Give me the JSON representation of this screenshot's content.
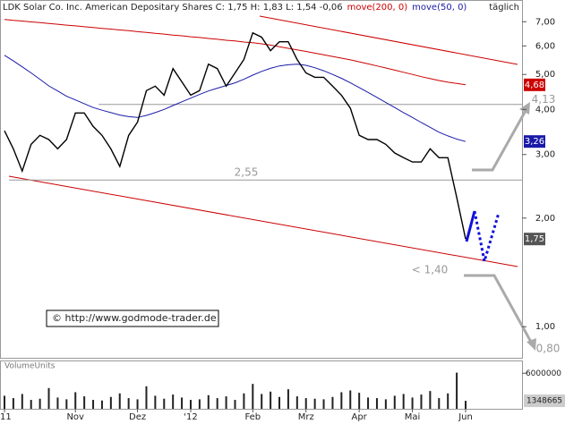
{
  "chart_data": {
    "type": "line",
    "title": "LDK Solar Co. Inc. American Depositary Shares C: 1,75 H: 1,83 L: 1,54 -0,06",
    "period": "täglich",
    "watermark": "© http://www.godmode-trader.de",
    "log_scale": true,
    "ylim": [
      0.82,
      7.95
    ],
    "yticks": [
      {
        "value": 1,
        "label": "1,00"
      },
      {
        "value": 2,
        "label": "2,00"
      },
      {
        "value": 3,
        "label": "3,00"
      },
      {
        "value": 4,
        "label": "4,00"
      },
      {
        "value": 5,
        "label": "5,00"
      },
      {
        "value": 6,
        "label": "6,00"
      },
      {
        "value": 7,
        "label": "7,00"
      }
    ],
    "categories": [
      "'11",
      null,
      null,
      null,
      null,
      null,
      null,
      null,
      "Nov",
      null,
      null,
      null,
      null,
      null,
      null,
      "Dez",
      null,
      null,
      null,
      null,
      null,
      "'12",
      null,
      null,
      null,
      null,
      null,
      null,
      "Feb",
      null,
      null,
      null,
      null,
      null,
      "Mrz",
      null,
      null,
      null,
      null,
      null,
      "Apr",
      null,
      null,
      null,
      null,
      null,
      "Mai",
      null,
      null,
      null,
      null,
      null,
      "Jun"
    ],
    "price": {
      "color": "#000000",
      "last_label": "1,75",
      "values": [
        3.49,
        3.11,
        2.7,
        3.2,
        3.39,
        3.3,
        3.11,
        3.3,
        3.91,
        3.91,
        3.59,
        3.39,
        3.11,
        2.78,
        3.39,
        3.69,
        4.51,
        4.64,
        4.38,
        5.19,
        4.77,
        4.38,
        4.51,
        5.34,
        5.19,
        4.64,
        5.05,
        5.5,
        6.52,
        6.34,
        5.82,
        6.16,
        6.16,
        5.5,
        5.05,
        4.91,
        4.91,
        4.64,
        4.38,
        4.03,
        3.39,
        3.3,
        3.3,
        3.2,
        3.03,
        2.94,
        2.86,
        2.86,
        3.11,
        2.94,
        2.94,
        2.28,
        1.75
      ]
    },
    "series": [
      {
        "name": "move(200, 0)",
        "color": "#cc0000",
        "last_label": "4,68",
        "values": [
          7.1,
          7.06,
          7.03,
          6.99,
          6.96,
          6.92,
          6.89,
          6.85,
          6.82,
          6.78,
          6.75,
          6.71,
          6.68,
          6.64,
          6.61,
          6.57,
          6.54,
          6.5,
          6.47,
          6.43,
          6.4,
          6.36,
          6.33,
          6.29,
          6.26,
          6.22,
          6.19,
          6.15,
          6.12,
          6.08,
          6.03,
          5.97,
          5.91,
          5.85,
          5.79,
          5.73,
          5.67,
          5.61,
          5.55,
          5.49,
          5.42,
          5.35,
          5.28,
          5.21,
          5.14,
          5.07,
          5.0,
          4.93,
          4.87,
          4.81,
          4.76,
          4.72,
          4.68
        ]
      },
      {
        "name": "move(50, 0)",
        "color": "#1a1aa8",
        "last_label": "3,26",
        "values": [
          5.65,
          5.45,
          5.25,
          5.05,
          4.85,
          4.65,
          4.5,
          4.35,
          4.25,
          4.15,
          4.05,
          3.98,
          3.92,
          3.86,
          3.82,
          3.8,
          3.85,
          3.92,
          4.0,
          4.1,
          4.2,
          4.3,
          4.4,
          4.5,
          4.58,
          4.66,
          4.74,
          4.85,
          4.98,
          5.1,
          5.2,
          5.28,
          5.32,
          5.34,
          5.3,
          5.22,
          5.12,
          5.0,
          4.88,
          4.74,
          4.6,
          4.46,
          4.32,
          4.18,
          4.05,
          3.92,
          3.8,
          3.68,
          3.57,
          3.46,
          3.38,
          3.31,
          3.26
        ]
      }
    ],
    "levels": [
      {
        "value": 2.55,
        "label": "2,55"
      },
      {
        "value": 4.13,
        "label": "4,13"
      }
    ],
    "targets": [
      "< 1,40",
      "0,80"
    ],
    "volume": {
      "title": "VolumeUnits",
      "color": "#222222",
      "ylim": [
        0,
        8000000
      ],
      "yticks": [
        6000000
      ],
      "values": [
        2200000,
        1800000,
        2500000,
        1500000,
        1700000,
        3500000,
        1900000,
        1600000,
        2800000,
        2100000,
        1500000,
        1400000,
        2000000,
        2600000,
        1800000,
        1600000,
        3800000,
        2200000,
        1700000,
        2400000,
        1900000,
        1500000,
        1600000,
        2300000,
        1800000,
        2100000,
        1500000,
        2600000,
        4200000,
        2500000,
        2900000,
        2000000,
        3300000,
        2100000,
        1800000,
        1700000,
        1600000,
        2000000,
        2800000,
        3100000,
        2700000,
        1900000,
        1800000,
        1600000,
        2200000,
        2500000,
        1900000,
        2400000,
        3000000,
        1800000,
        2600000,
        6100000,
        1348665
      ]
    }
  }
}
